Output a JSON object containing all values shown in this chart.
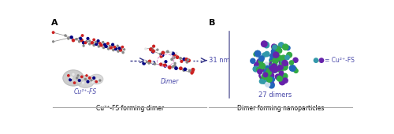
{
  "fig_width": 5.0,
  "fig_height": 1.7,
  "dpi": 100,
  "bg_color": "#ffffff",
  "label_A": "A",
  "label_B": "B",
  "text_cu2fs": "Cu²⁺-FS",
  "text_dimer": "Dimer",
  "text_panel_a": "Cu²⁺-FS forming dimer",
  "text_panel_b": "Dimer forming nanoparticles",
  "text_27dimers": "27 dimers",
  "text_31nm": "31 nm",
  "text_legend": "= Cu²⁺-FS",
  "purple_color": "#4a4aaa",
  "nano_purple": "#6622aa",
  "nano_green": "#33aa44",
  "nano_blue": "#2266bb",
  "nano_teal": "#3399aa",
  "nano_white": "#ccddee",
  "gray_color": "#888888",
  "light_gray": "#c0c0c0",
  "red_color": "#cc2222",
  "white_atom": "#e8e8e8",
  "divider_color": "#aaaaaa",
  "arrow_color": "#333388",
  "vline_color": "#7777aa"
}
